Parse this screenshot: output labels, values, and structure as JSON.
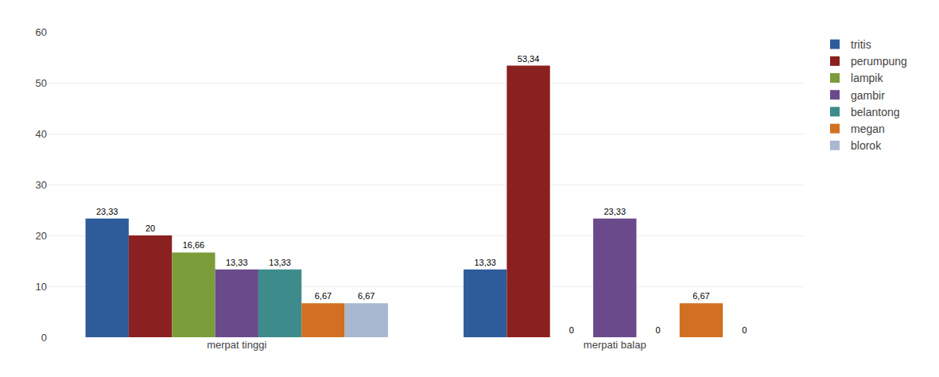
{
  "chart_data": {
    "type": "bar",
    "categories": [
      "merpat tinggi",
      "merpati balap"
    ],
    "series": [
      {
        "name": "tritis",
        "color": "#2E5B9A",
        "values": [
          23.33,
          13.33
        ],
        "value_labels": [
          "23,33",
          "13,33"
        ]
      },
      {
        "name": "perumpung",
        "color": "#8B2020",
        "values": [
          20.0,
          53.34
        ],
        "value_labels": [
          "20",
          "53,34"
        ]
      },
      {
        "name": "lampik",
        "color": "#7B9C3A",
        "values": [
          16.66,
          0.0
        ],
        "value_labels": [
          "16,66",
          "0"
        ]
      },
      {
        "name": "gambir",
        "color": "#6B4A8B",
        "values": [
          13.33,
          23.33
        ],
        "value_labels": [
          "13,33",
          "23,33"
        ]
      },
      {
        "name": "belantong",
        "color": "#3D8B8B",
        "values": [
          13.33,
          0.0
        ],
        "value_labels": [
          "13,33",
          "0"
        ]
      },
      {
        "name": "megan",
        "color": "#D07020",
        "values": [
          6.67,
          6.67
        ],
        "value_labels": [
          "6,67",
          "6,67"
        ]
      },
      {
        "name": "blorok",
        "color": "#A8B8D0",
        "values": [
          6.67,
          0.0
        ],
        "value_labels": [
          "6,67",
          "0"
        ]
      }
    ],
    "ylim": [
      0,
      60
    ],
    "yticks": [
      0,
      10,
      20,
      30,
      40,
      50,
      60
    ],
    "grid": true,
    "data_labels": true,
    "legend": "upper right"
  }
}
